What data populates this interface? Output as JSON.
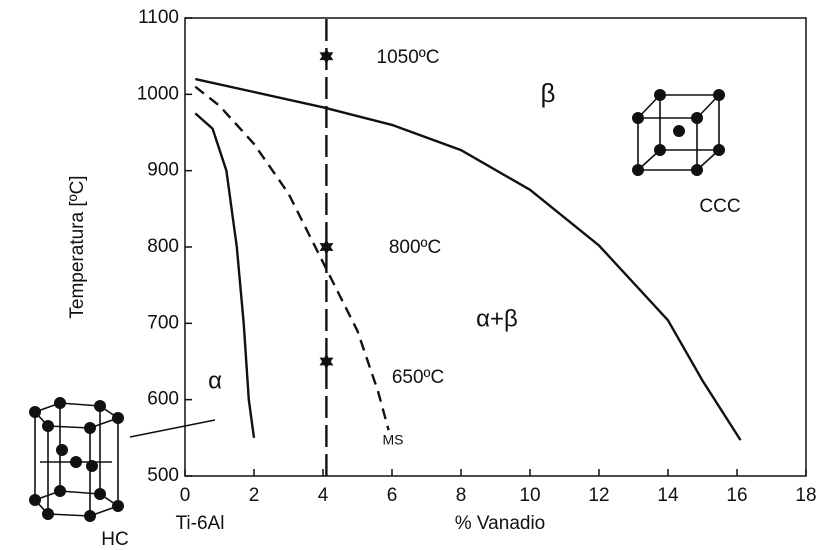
{
  "chart_data": {
    "type": "line",
    "xlabel": "% Vanadio",
    "ylabel": "Temperatura [ºC]",
    "xlim": [
      0,
      18
    ],
    "xticks": [
      0,
      2,
      4,
      6,
      8,
      10,
      12,
      14,
      16,
      18
    ],
    "ylim": [
      500,
      1100
    ],
    "yticks": [
      500,
      600,
      700,
      800,
      900,
      1000,
      1100
    ],
    "series": [
      {
        "color": "#111111",
        "style": "solid",
        "x": [
          0.3,
          2,
          4,
          6,
          8,
          10,
          12,
          14,
          15,
          16.1
        ],
        "values": [
          1020,
          1003,
          983,
          960,
          927,
          875,
          802,
          704,
          625,
          547
        ]
      },
      {
        "color": "#111111",
        "style": "solid",
        "x": [
          0.3,
          0.8,
          1.2,
          1.5,
          1.7,
          1.85,
          2
        ],
        "values": [
          975,
          955,
          900,
          800,
          700,
          600,
          550
        ]
      },
      {
        "color": "#111111",
        "style": "dashed",
        "x": [
          0.3,
          1,
          2,
          3,
          4,
          5,
          5.6,
          5.9
        ],
        "values": [
          1010,
          985,
          935,
          870,
          780,
          690,
          610,
          560
        ]
      },
      {
        "color": "#111111",
        "style": "longdash",
        "x": [
          4.1,
          4.1
        ],
        "values": [
          500,
          1100
        ]
      },
      {
        "color": "#111111",
        "style": "stars",
        "x": [
          4.1,
          4.1,
          4.1
        ],
        "values": [
          1050,
          800,
          650
        ]
      }
    ],
    "annotations": [
      "β",
      "CCC",
      "α+β",
      "α",
      "1050ºC",
      "800ºC",
      "650ºC",
      "MS",
      "HC",
      "Ti-6Al"
    ]
  }
}
